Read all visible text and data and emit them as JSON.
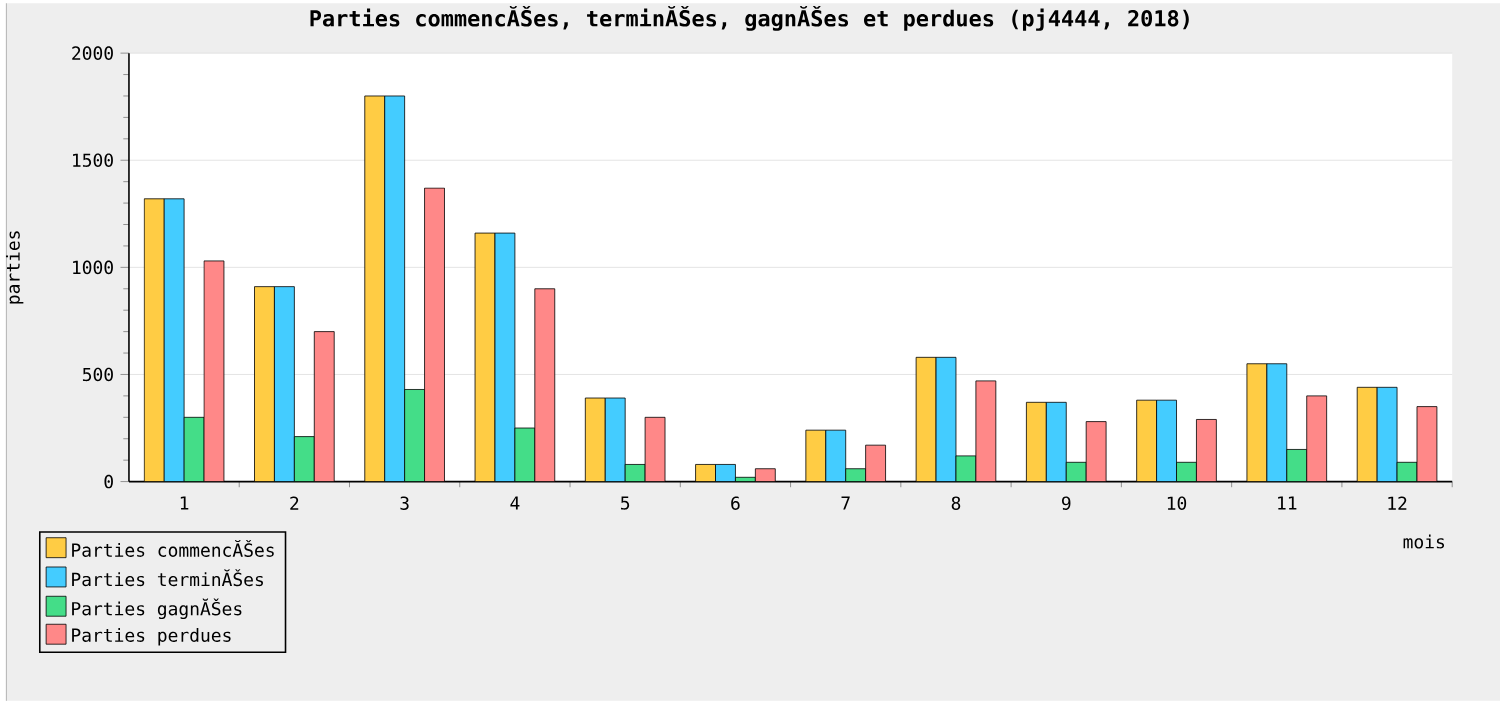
{
  "chart_data": {
    "type": "bar",
    "title": "Parties commencĂŠes, terminĂŠes, gagnĂŠes et perdues (pj4444, 2018)",
    "xlabel": "mois",
    "ylabel": "parties",
    "categories": [
      "1",
      "2",
      "3",
      "4",
      "5",
      "6",
      "7",
      "8",
      "9",
      "10",
      "11",
      "12"
    ],
    "series": [
      {
        "name": "Parties commencĂŠes",
        "color": "#ffcc44",
        "values": [
          1320,
          910,
          1800,
          1160,
          390,
          80,
          240,
          580,
          370,
          380,
          550,
          440
        ]
      },
      {
        "name": "Parties terminĂŠes",
        "color": "#44ccff",
        "values": [
          1320,
          910,
          1800,
          1160,
          390,
          80,
          240,
          580,
          370,
          380,
          550,
          440
        ]
      },
      {
        "name": "Parties gagnĂŠes",
        "color": "#44dd88",
        "values": [
          300,
          210,
          430,
          250,
          80,
          20,
          60,
          120,
          90,
          90,
          150,
          90
        ]
      },
      {
        "name": "Parties perdues",
        "color": "#ff8888",
        "values": [
          1030,
          700,
          1370,
          900,
          300,
          60,
          170,
          470,
          280,
          290,
          400,
          350
        ]
      }
    ],
    "ylim": [
      0,
      2000
    ],
    "yticks": [
      0,
      500,
      1000,
      1500,
      2000
    ],
    "grid": "y",
    "legend": "bottom left"
  }
}
